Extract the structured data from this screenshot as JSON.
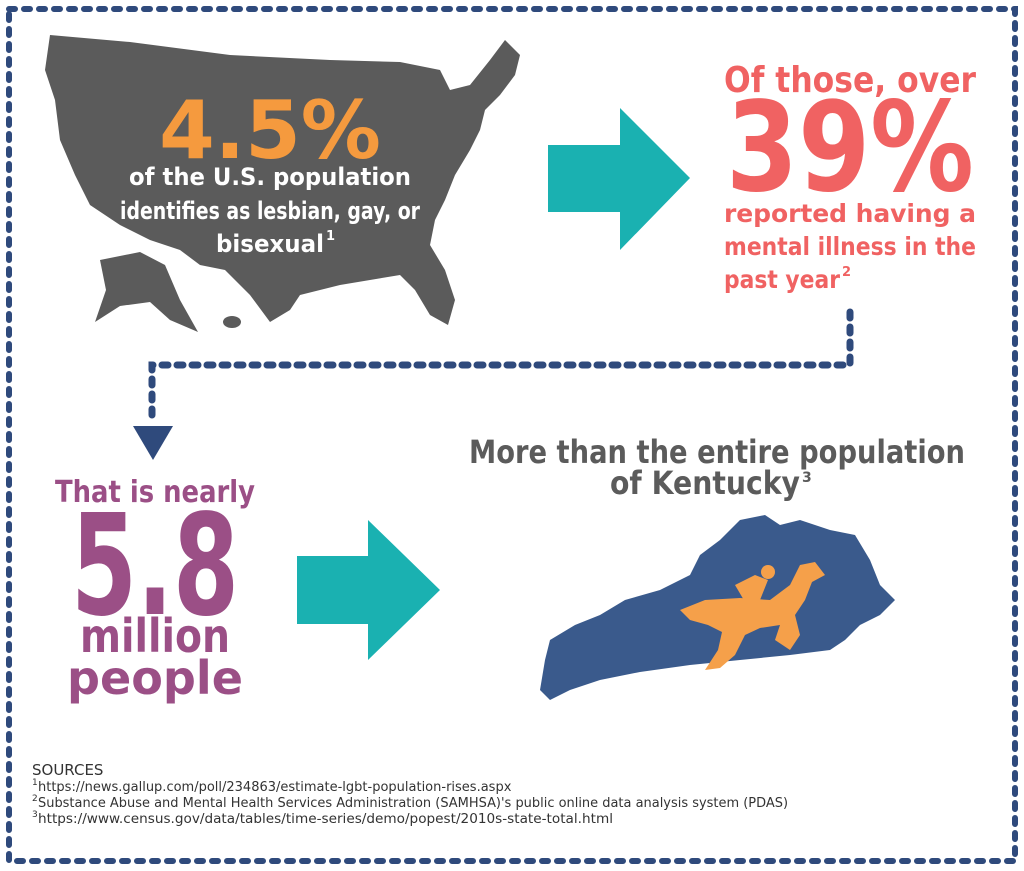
{
  "us_panel": {
    "percent": "4.5%",
    "lines": [
      "of the U.S. population",
      "identifies as lesbian, gay, or",
      "bisexual"
    ],
    "footnote": "1"
  },
  "mental_health_panel": {
    "lead": "Of those, over",
    "percent": "39%",
    "lines": [
      "reported having a",
      "mental illness in the",
      "past year"
    ],
    "footnote": "2"
  },
  "people_panel": {
    "lead": "That is nearly",
    "number": "5.8",
    "lines": [
      "million",
      "people"
    ]
  },
  "kentucky_panel": {
    "lines": [
      "More than the entire population",
      "of Kentucky"
    ],
    "footnote": "3"
  },
  "sources": {
    "heading": "SOURCES",
    "items": [
      {
        "marker": "1",
        "text": "https://news.gallup.com/poll/234863/estimate-lgbt-population-rises.aspx"
      },
      {
        "marker": "2",
        "text": "Substance Abuse and Mental Health Services Administration (SAMHSA)'s public online data analysis system (PDAS)"
      },
      {
        "marker": "3",
        "text": "https://www.census.gov/data/tables/time-series/demo/popest/2010s-state-total.html"
      }
    ]
  }
}
